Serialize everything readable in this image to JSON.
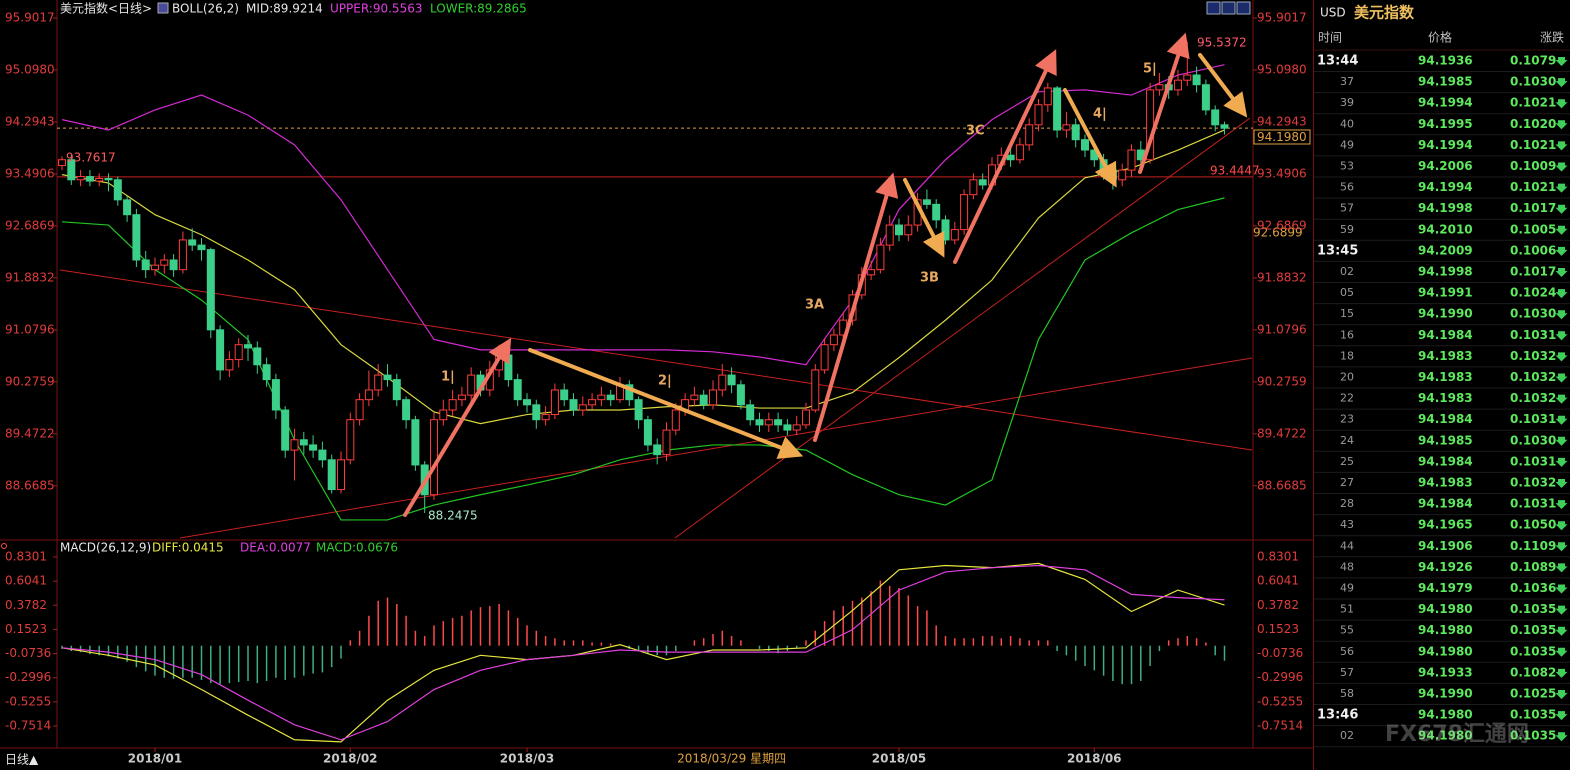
{
  "header": {
    "symbol": "美元指数<日线>",
    "indicator": "BOLL(26,2)",
    "mid": "MID:89.9214",
    "upper": "UPPER:90.5563",
    "lower": "LOWER:89.2865",
    "macd_title": "MACD(26,12,9)",
    "diff": "DIFF:0.0415",
    "dea": "DEA:0.0077",
    "macd": "MACD:0.0676",
    "period": "日线▲"
  },
  "chart_data": {
    "type": "candlestick",
    "ylim": [
      87.83,
      96.18
    ],
    "yticks": [
      95.9017,
      {
        "value": 95.098,
        "label": "95.0980"
      },
      94.2943,
      93.4906,
      92.6869,
      91.8832,
      91.0796,
      90.2759,
      89.4722,
      88.6685
    ],
    "x_labels": [
      {
        "index": 10,
        "label": "2018/01"
      },
      {
        "index": 31,
        "label": "2018/02"
      },
      {
        "index": 50,
        "label": "2018/03"
      },
      {
        "index": 90,
        "label": "2018/05"
      },
      {
        "index": 111,
        "label": "2018/06"
      }
    ],
    "cursor_date": {
      "index": 72,
      "label": "2018/03/29 星期四"
    },
    "candles": [
      [
        93.62,
        93.7617,
        93.55,
        93.71
      ],
      [
        93.71,
        93.78,
        93.32,
        93.4
      ],
      [
        93.4,
        93.55,
        93.3,
        93.45
      ],
      [
        93.45,
        93.55,
        93.3,
        93.38
      ],
      [
        93.38,
        93.5,
        93.3,
        93.42
      ],
      [
        93.42,
        93.5,
        93.22,
        93.4
      ],
      [
        93.4,
        93.45,
        93.0,
        93.09
      ],
      [
        93.09,
        93.15,
        92.75,
        92.86
      ],
      [
        92.86,
        92.95,
        92.05,
        92.16
      ],
      [
        92.16,
        92.3,
        91.88,
        92.01
      ],
      [
        92.01,
        92.2,
        91.92,
        92.08
      ],
      [
        92.08,
        92.25,
        91.95,
        92.16
      ],
      [
        92.16,
        92.25,
        91.9,
        92.01
      ],
      [
        92.01,
        92.6,
        91.95,
        92.47
      ],
      [
        92.47,
        92.65,
        92.3,
        92.39
      ],
      [
        92.39,
        92.5,
        92.15,
        92.32
      ],
      [
        92.32,
        92.35,
        90.95,
        91.08
      ],
      [
        91.08,
        91.15,
        90.3,
        90.46
      ],
      [
        90.46,
        90.75,
        90.35,
        90.62
      ],
      [
        90.62,
        90.95,
        90.5,
        90.85
      ],
      [
        90.85,
        91.0,
        90.6,
        90.8
      ],
      [
        90.8,
        90.9,
        90.4,
        90.54
      ],
      [
        90.54,
        90.65,
        90.2,
        90.31
      ],
      [
        90.31,
        90.4,
        89.7,
        89.84
      ],
      [
        89.84,
        89.9,
        89.1,
        89.22
      ],
      [
        89.22,
        89.55,
        88.75,
        89.38
      ],
      [
        89.38,
        89.5,
        89.15,
        89.3
      ],
      [
        89.3,
        89.45,
        89.1,
        89.22
      ],
      [
        89.22,
        89.35,
        88.95,
        89.07
      ],
      [
        89.07,
        89.15,
        88.55,
        88.61
      ],
      [
        88.61,
        89.2,
        88.55,
        89.07
      ],
      [
        89.07,
        89.8,
        89.0,
        89.69
      ],
      [
        89.69,
        90.1,
        89.6,
        90.0
      ],
      [
        90.0,
        90.45,
        89.9,
        90.15
      ],
      [
        90.15,
        90.55,
        90.05,
        90.38
      ],
      [
        90.38,
        90.55,
        90.2,
        90.31
      ],
      [
        90.31,
        90.4,
        89.9,
        90.0
      ],
      [
        90.0,
        90.05,
        89.55,
        89.69
      ],
      [
        89.69,
        89.75,
        88.9,
        88.99
      ],
      [
        88.99,
        89.05,
        88.2475,
        88.53
      ],
      [
        88.53,
        89.8,
        88.45,
        89.69
      ],
      [
        89.69,
        90.0,
        89.6,
        89.84
      ],
      [
        89.84,
        90.15,
        89.75,
        90.0
      ],
      [
        90.0,
        90.2,
        89.9,
        90.07
      ],
      [
        90.07,
        90.5,
        89.95,
        90.38
      ],
      [
        90.38,
        90.45,
        90.05,
        90.15
      ],
      [
        90.15,
        90.6,
        90.05,
        90.46
      ],
      [
        90.46,
        90.85,
        90.35,
        90.69
      ],
      [
        90.69,
        90.75,
        90.2,
        90.31
      ],
      [
        90.31,
        90.4,
        89.9,
        90.0
      ],
      [
        90.0,
        90.1,
        89.8,
        89.92
      ],
      [
        89.92,
        90.0,
        89.55,
        89.69
      ],
      [
        89.69,
        89.9,
        89.6,
        89.77
      ],
      [
        89.77,
        90.25,
        89.7,
        90.15
      ],
      [
        90.15,
        90.25,
        89.9,
        90.0
      ],
      [
        90.0,
        90.1,
        89.75,
        89.84
      ],
      [
        89.84,
        90.05,
        89.75,
        89.92
      ],
      [
        89.92,
        90.1,
        89.85,
        90.0
      ],
      [
        90.0,
        90.2,
        89.9,
        90.07
      ],
      [
        90.07,
        90.15,
        89.9,
        90.0
      ],
      [
        90.0,
        90.35,
        89.95,
        90.23
      ],
      [
        90.23,
        90.3,
        89.9,
        90.0
      ],
      [
        90.0,
        90.05,
        89.55,
        89.69
      ],
      [
        89.69,
        89.75,
        89.2,
        89.3
      ],
      [
        89.3,
        89.4,
        89.0,
        89.15
      ],
      [
        89.15,
        89.65,
        89.05,
        89.53
      ],
      [
        89.53,
        89.95,
        89.45,
        89.84
      ],
      [
        89.84,
        90.1,
        89.75,
        90.0
      ],
      [
        90.0,
        90.2,
        89.9,
        90.07
      ],
      [
        90.07,
        90.15,
        89.85,
        89.92
      ],
      [
        89.92,
        90.3,
        89.85,
        90.15
      ],
      [
        90.15,
        90.55,
        90.05,
        90.38
      ],
      [
        90.38,
        90.5,
        90.1,
        90.23
      ],
      [
        90.23,
        90.3,
        89.85,
        89.92
      ],
      [
        89.92,
        90.0,
        89.6,
        89.69
      ],
      [
        89.69,
        89.8,
        89.5,
        89.61
      ],
      [
        89.61,
        89.8,
        89.5,
        89.69
      ],
      [
        89.69,
        89.8,
        89.5,
        89.61
      ],
      [
        89.61,
        89.7,
        89.45,
        89.53
      ],
      [
        89.53,
        89.75,
        89.45,
        89.61
      ],
      [
        89.61,
        89.95,
        89.55,
        89.84
      ],
      [
        89.84,
        90.55,
        89.8,
        90.46
      ],
      [
        90.46,
        90.95,
        90.4,
        90.85
      ],
      [
        90.85,
        91.1,
        90.75,
        91.0
      ],
      [
        91.0,
        91.35,
        90.95,
        91.23
      ],
      [
        91.23,
        91.7,
        91.15,
        91.62
      ],
      [
        91.62,
        92.05,
        91.55,
        91.93
      ],
      [
        91.93,
        92.15,
        91.85,
        92.01
      ],
      [
        92.01,
        92.5,
        91.95,
        92.39
      ],
      [
        92.39,
        92.85,
        92.3,
        92.7
      ],
      [
        92.7,
        92.8,
        92.45,
        92.55
      ],
      [
        92.55,
        92.85,
        92.45,
        92.7
      ],
      [
        92.7,
        93.2,
        92.6,
        93.09
      ],
      [
        93.09,
        93.25,
        92.95,
        93.02
      ],
      [
        93.02,
        93.1,
        92.65,
        92.78
      ],
      [
        92.78,
        92.85,
        92.4,
        92.47
      ],
      [
        92.47,
        92.75,
        92.4,
        92.63
      ],
      [
        92.63,
        93.25,
        92.55,
        93.17
      ],
      [
        93.17,
        93.5,
        93.1,
        93.4
      ],
      [
        93.4,
        93.5,
        93.25,
        93.32
      ],
      [
        93.32,
        93.75,
        93.25,
        93.63
      ],
      [
        93.63,
        93.9,
        93.55,
        93.78
      ],
      [
        93.78,
        93.9,
        93.6,
        93.71
      ],
      [
        93.71,
        94.05,
        93.65,
        93.94
      ],
      [
        93.94,
        94.35,
        93.85,
        94.25
      ],
      [
        94.25,
        94.65,
        94.15,
        94.56
      ],
      [
        94.56,
        94.9,
        94.45,
        94.82
      ],
      [
        94.82,
        94.85,
        94.05,
        94.17
      ],
      [
        94.17,
        94.45,
        94.05,
        94.25
      ],
      [
        94.25,
        94.35,
        93.9,
        94.02
      ],
      [
        94.02,
        94.1,
        93.75,
        93.86
      ],
      [
        93.86,
        93.95,
        93.6,
        93.71
      ],
      [
        93.71,
        93.8,
        93.4,
        93.55
      ],
      [
        93.55,
        93.65,
        93.25,
        93.4
      ],
      [
        93.4,
        93.65,
        93.3,
        93.55
      ],
      [
        93.55,
        93.95,
        93.45,
        93.86
      ],
      [
        93.86,
        94.0,
        93.55,
        93.71
      ],
      [
        93.71,
        94.9,
        93.65,
        94.79
      ],
      [
        94.79,
        95.05,
        94.7,
        94.87
      ],
      [
        94.87,
        95.0,
        94.65,
        94.79
      ],
      [
        94.79,
        95.1,
        94.7,
        94.94
      ],
      [
        94.94,
        95.5372,
        94.85,
        95.02
      ],
      [
        95.02,
        95.15,
        94.75,
        94.87
      ],
      [
        94.87,
        94.95,
        94.4,
        94.48
      ],
      [
        94.48,
        94.55,
        94.15,
        94.25
      ],
      [
        94.25,
        94.3,
        94.1,
        94.198
      ]
    ],
    "boll": {
      "x": [
        0,
        5,
        10,
        15,
        20,
        25,
        30,
        35,
        40,
        45,
        50,
        55,
        60,
        65,
        70,
        75,
        80,
        85,
        90,
        95,
        100,
        105,
        110,
        115,
        120,
        125
      ],
      "upper": [
        94.33,
        94.17,
        94.48,
        94.71,
        94.4,
        93.94,
        93.09,
        92.01,
        90.93,
        90.77,
        90.77,
        90.77,
        90.77,
        90.77,
        90.74,
        90.66,
        90.54,
        91.54,
        92.94,
        93.71,
        94.33,
        94.76,
        94.79,
        94.71,
        95.02,
        95.18
      ],
      "mid": [
        93.48,
        93.35,
        92.86,
        92.55,
        92.16,
        91.7,
        90.85,
        90.34,
        89.81,
        89.63,
        89.77,
        89.84,
        89.84,
        89.89,
        89.92,
        89.87,
        89.87,
        90.11,
        90.65,
        91.23,
        91.85,
        92.81,
        93.43,
        93.58,
        93.86,
        94.17
      ],
      "lower": [
        92.75,
        92.7,
        92.01,
        91.54,
        90.93,
        89.38,
        88.14,
        88.14,
        88.37,
        88.53,
        88.68,
        88.84,
        89.07,
        89.22,
        89.3,
        89.3,
        89.22,
        88.84,
        88.53,
        88.37,
        88.76,
        90.93,
        92.16,
        92.58,
        92.94,
        93.12
      ],
      "colors": {
        "upper": "#d42ad4",
        "mid": "#d8d840",
        "lower": "#22c422"
      }
    },
    "hline": 93.4447,
    "last_price": {
      "value": 94.198,
      "label": "94.1980"
    },
    "side_price": 92.6899,
    "up_color": "#ff3c3c",
    "down_color": "#3ccf8a",
    "macd": {
      "ylim": [
        -0.929,
        0.942
      ],
      "yticks": [
        0.8301,
        0.6041,
        0.3782,
        0.1523,
        -0.0736,
        -0.2996,
        -0.5255,
        -0.7514
      ],
      "x": [
        0,
        5,
        10,
        15,
        20,
        25,
        30,
        35,
        40,
        45,
        50,
        55,
        60,
        65,
        70,
        75,
        80,
        85,
        90,
        95,
        100,
        105,
        110,
        115,
        120,
        125
      ],
      "diff": [
        -0.02,
        -0.09,
        -0.18,
        -0.41,
        -0.65,
        -0.88,
        -0.9,
        -0.51,
        -0.23,
        -0.09,
        -0.13,
        -0.09,
        0.01,
        -0.13,
        -0.04,
        -0.04,
        -0.02,
        0.33,
        0.71,
        0.75,
        0.73,
        0.77,
        0.62,
        0.32,
        0.52,
        0.38
      ],
      "dea": [
        -0.02,
        -0.06,
        -0.13,
        -0.27,
        -0.51,
        -0.74,
        -0.88,
        -0.71,
        -0.41,
        -0.23,
        -0.13,
        -0.09,
        -0.04,
        -0.06,
        -0.06,
        -0.06,
        -0.06,
        0.15,
        0.52,
        0.69,
        0.73,
        0.75,
        0.71,
        0.48,
        0.45,
        0.43
      ],
      "hist": [
        -0.03,
        -0.05,
        -0.06,
        -0.08,
        -0.09,
        -0.1,
        -0.12,
        -0.15,
        -0.2,
        -0.24,
        -0.28,
        -0.3,
        -0.31,
        -0.3,
        -0.3,
        -0.32,
        -0.35,
        -0.36,
        -0.35,
        -0.34,
        -0.33,
        -0.35,
        -0.33,
        -0.3,
        -0.32,
        -0.3,
        -0.28,
        -0.26,
        -0.25,
        -0.2,
        -0.12,
        0.05,
        0.14,
        0.28,
        0.42,
        0.45,
        0.39,
        0.28,
        0.14,
        0.09,
        0.19,
        0.23,
        0.26,
        0.28,
        0.33,
        0.36,
        0.37,
        0.39,
        0.33,
        0.26,
        0.19,
        0.14,
        0.09,
        0.07,
        0.05,
        0.05,
        0.05,
        0.03,
        0.03,
        0.02,
        0.0,
        -0.03,
        -0.05,
        -0.07,
        -0.09,
        -0.09,
        -0.05,
        0.0,
        0.05,
        0.07,
        0.11,
        0.14,
        0.09,
        0.05,
        0.0,
        -0.03,
        -0.05,
        -0.07,
        -0.05,
        -0.02,
        0.05,
        0.14,
        0.23,
        0.33,
        0.37,
        0.42,
        0.45,
        0.51,
        0.61,
        0.56,
        0.54,
        0.47,
        0.37,
        0.33,
        0.19,
        0.09,
        0.07,
        0.07,
        0.07,
        0.09,
        0.09,
        0.07,
        0.09,
        0.07,
        0.05,
        0.05,
        0.05,
        -0.05,
        -0.09,
        -0.14,
        -0.19,
        -0.23,
        -0.28,
        -0.33,
        -0.36,
        -0.36,
        -0.33,
        -0.19,
        -0.05,
        0.05,
        0.07,
        0.09,
        0.07,
        0.03,
        -0.09,
        -0.14
      ],
      "colors": {
        "diff": "#e6e640",
        "dea": "#e040e0",
        "up": "#ff4a4a",
        "down": "#3fae80"
      }
    }
  },
  "annotations": {
    "w1": "1|",
    "w2": "2|",
    "w3a": "3A",
    "w3b": "3B",
    "w3c": "3C",
    "w4": "4|",
    "w5": "5|"
  },
  "quotes": {
    "symbol": "USD",
    "name": "美元指数",
    "columns": [
      "时间",
      "价格",
      "涨跌"
    ],
    "rows": [
      [
        "13:44",
        "94.1936",
        "0.1079"
      ],
      [
        "37",
        "94.1985",
        "0.1030"
      ],
      [
        "39",
        "94.1994",
        "0.1021"
      ],
      [
        "40",
        "94.1995",
        "0.1020"
      ],
      [
        "49",
        "94.1994",
        "0.1021"
      ],
      [
        "53",
        "94.2006",
        "0.1009"
      ],
      [
        "56",
        "94.1994",
        "0.1021"
      ],
      [
        "57",
        "94.1998",
        "0.1017"
      ],
      [
        "59",
        "94.2010",
        "0.1005"
      ],
      [
        "13:45",
        "94.2009",
        "0.1006"
      ],
      [
        "02",
        "94.1998",
        "0.1017"
      ],
      [
        "05",
        "94.1991",
        "0.1024"
      ],
      [
        "15",
        "94.1990",
        "0.1030"
      ],
      [
        "16",
        "94.1984",
        "0.1031"
      ],
      [
        "18",
        "94.1983",
        "0.1032"
      ],
      [
        "20",
        "94.1983",
        "0.1032"
      ],
      [
        "22",
        "94.1983",
        "0.1032"
      ],
      [
        "23",
        "94.1984",
        "0.1031"
      ],
      [
        "24",
        "94.1985",
        "0.1030"
      ],
      [
        "25",
        "94.1984",
        "0.1031"
      ],
      [
        "27",
        "94.1983",
        "0.1032"
      ],
      [
        "28",
        "94.1984",
        "0.1031"
      ],
      [
        "43",
        "94.1965",
        "0.1050"
      ],
      [
        "44",
        "94.1906",
        "0.1109"
      ],
      [
        "48",
        "94.1926",
        "0.1089"
      ],
      [
        "49",
        "94.1979",
        "0.1036"
      ],
      [
        "51",
        "94.1980",
        "0.1035"
      ],
      [
        "55",
        "94.1980",
        "0.1035"
      ],
      [
        "56",
        "94.1980",
        "0.1035"
      ],
      [
        "57",
        "94.1933",
        "0.1082"
      ],
      [
        "58",
        "94.1990",
        "0.1025"
      ],
      [
        "13:46",
        "94.1980",
        "0.1035"
      ],
      [
        "02",
        "94.1980",
        "0.1035"
      ]
    ],
    "watermark": "FX678汇通网"
  }
}
